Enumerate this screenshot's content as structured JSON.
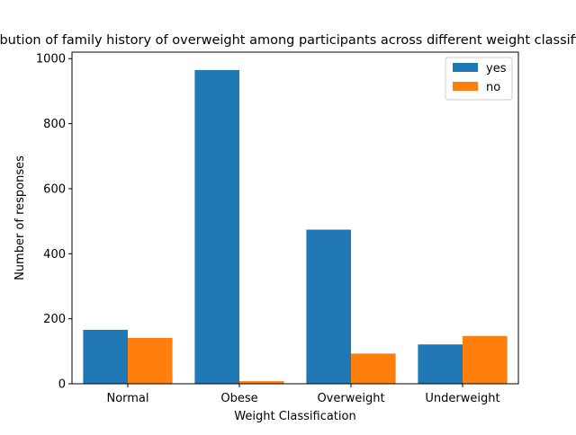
{
  "chart_data": {
    "type": "bar",
    "title": "Distribution of family history of overweight among participants across different weight classifications",
    "xlabel": "Weight Classification",
    "ylabel": "Number of responses",
    "categories": [
      "Normal",
      "Obese",
      "Overweight",
      "Underweight"
    ],
    "series": [
      {
        "name": "yes",
        "color": "#1f77b4",
        "values": [
          166,
          965,
          474,
          121
        ]
      },
      {
        "name": "no",
        "color": "#ff7f0e",
        "values": [
          141,
          8,
          93,
          147
        ]
      }
    ],
    "ylim": [
      0,
      1020
    ],
    "yticks": [
      0,
      200,
      400,
      600,
      800,
      1000
    ],
    "ytick_labels": [
      "0",
      "200",
      "400",
      "600",
      "800",
      "1000"
    ],
    "grid": false,
    "legend_position": "top-right"
  }
}
